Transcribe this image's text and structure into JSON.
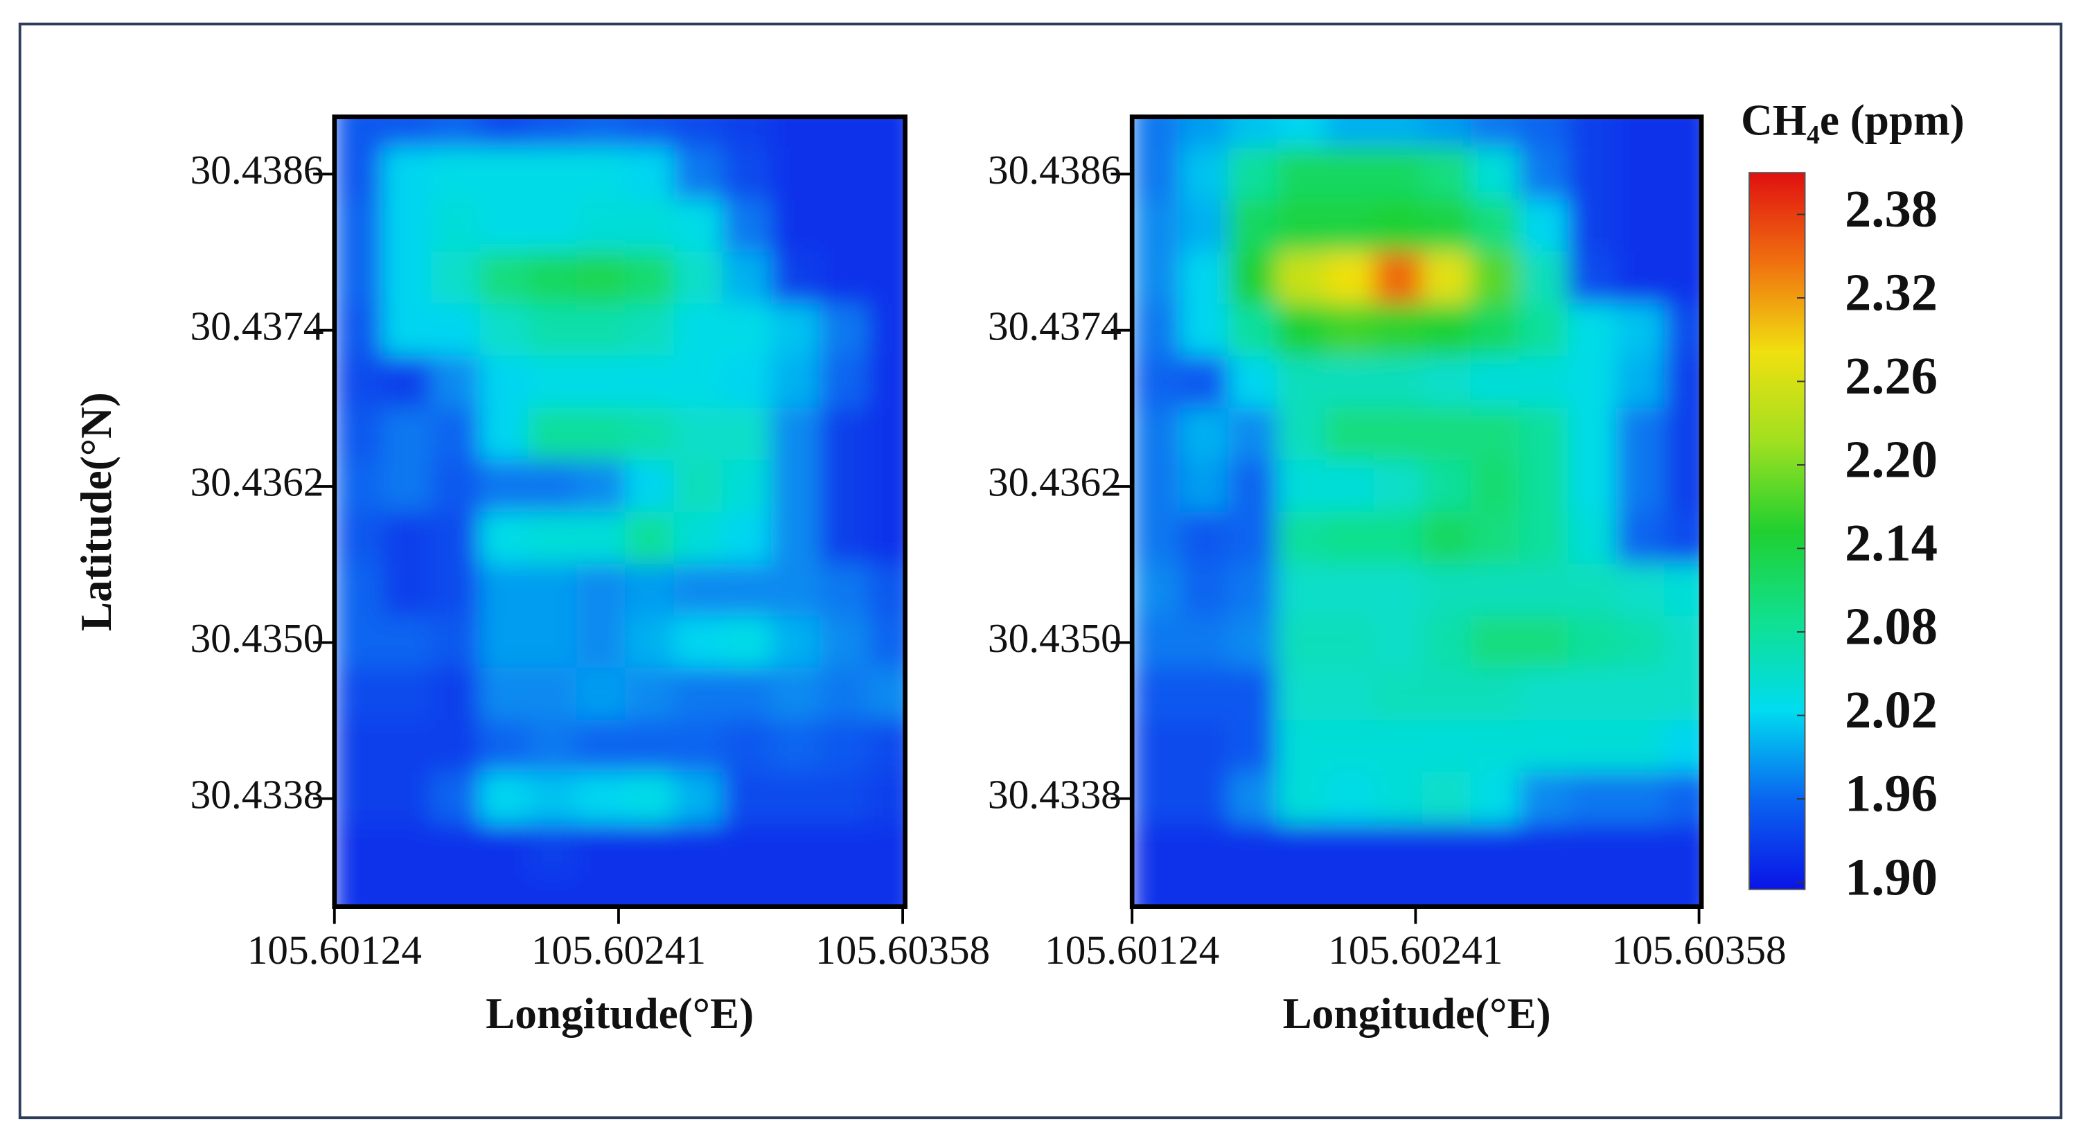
{
  "chart_data": [
    {
      "type": "heatmap",
      "x_label": "Longitude(°E)",
      "y_label": "Latitude(°N)",
      "xlim": [
        105.60124,
        105.60359
      ],
      "ylim": [
        30.43297,
        30.43904
      ],
      "xticks": [
        105.60124,
        105.60241,
        105.60358
      ],
      "yticks": [
        30.4386,
        30.4374,
        30.4362,
        {
          "value": 30.435,
          "label": "30.4350"
        },
        30.4338
      ],
      "clim": [
        1.895,
        2.41
      ],
      "colormap": [
        "#0a14e6",
        "#0a64f0",
        "#00dcf0",
        "#10e090",
        "#20d030",
        "#a0e020",
        "#f0e010",
        "#f07010",
        "#e01010"
      ],
      "x": [
        105.60134,
        105.60154,
        105.60174,
        105.60194,
        105.60214,
        105.60234,
        105.60254,
        105.60274,
        105.60294,
        105.60314,
        105.60334,
        105.60354
      ],
      "y": [
        30.439,
        30.4386,
        30.4382,
        30.4378,
        30.4374,
        30.437,
        30.4366,
        30.4362,
        30.4358,
        30.4354,
        30.435,
        30.4346,
        30.4342,
        30.4338,
        30.4334,
        30.433
      ],
      "z": [
        [
          1.95,
          1.95,
          1.96,
          1.94,
          1.95,
          1.96,
          1.95,
          1.94,
          1.93,
          1.92,
          1.92,
          1.92
        ],
        [
          1.95,
          2.02,
          2.03,
          2.03,
          2.03,
          2.03,
          2.02,
          1.97,
          1.94,
          1.92,
          1.92,
          1.92
        ],
        [
          1.96,
          2.02,
          2.04,
          2.03,
          2.03,
          2.04,
          2.04,
          2.03,
          1.97,
          1.92,
          1.92,
          1.92
        ],
        [
          1.96,
          2.02,
          2.05,
          2.1,
          2.12,
          2.13,
          2.11,
          2.05,
          2.0,
          1.93,
          1.92,
          1.92
        ],
        [
          1.95,
          2.02,
          2.02,
          2.05,
          2.07,
          2.07,
          2.06,
          2.03,
          2.03,
          2.01,
          1.97,
          1.92
        ],
        [
          1.94,
          1.93,
          1.98,
          2.02,
          2.03,
          2.03,
          2.03,
          2.03,
          2.02,
          2.0,
          1.96,
          1.92
        ],
        [
          1.95,
          1.97,
          1.96,
          2.02,
          2.08,
          2.08,
          2.07,
          2.05,
          2.05,
          1.98,
          1.93,
          1.92
        ],
        [
          1.96,
          1.97,
          1.95,
          1.97,
          1.97,
          1.98,
          2.02,
          2.06,
          2.04,
          1.98,
          1.93,
          1.92
        ],
        [
          1.95,
          1.93,
          1.94,
          2.03,
          2.04,
          2.04,
          2.08,
          2.04,
          2.02,
          1.98,
          1.93,
          1.92
        ],
        [
          1.96,
          1.93,
          1.94,
          1.99,
          1.99,
          1.98,
          1.99,
          1.98,
          1.98,
          1.98,
          1.97,
          1.95
        ],
        [
          1.96,
          1.96,
          1.95,
          1.99,
          1.99,
          1.98,
          2.0,
          2.02,
          2.03,
          2.0,
          1.98,
          1.96
        ],
        [
          1.94,
          1.94,
          1.93,
          1.98,
          1.98,
          1.99,
          1.98,
          1.97,
          1.97,
          1.98,
          1.97,
          1.98
        ],
        [
          1.93,
          1.93,
          1.93,
          1.96,
          1.97,
          1.96,
          1.96,
          1.96,
          1.95,
          1.96,
          1.95,
          1.94
        ],
        [
          1.93,
          1.93,
          1.96,
          2.02,
          2.01,
          2.02,
          2.03,
          2.0,
          1.94,
          1.94,
          1.94,
          1.93
        ],
        [
          1.92,
          1.92,
          1.92,
          1.92,
          1.93,
          1.92,
          1.92,
          1.92,
          1.92,
          1.92,
          1.92,
          1.92
        ],
        [
          1.92,
          1.92,
          1.92,
          1.92,
          1.92,
          1.92,
          1.92,
          1.92,
          1.92,
          1.92,
          1.92,
          1.92
        ]
      ]
    },
    {
      "type": "heatmap",
      "x_label": "Longitude(°E)",
      "xlim": [
        105.60124,
        105.60359
      ],
      "ylim": [
        30.43297,
        30.43904
      ],
      "xticks": [
        105.60124,
        105.60241,
        105.60358
      ],
      "yticks": [
        30.4386,
        30.4374,
        30.4362,
        {
          "value": 30.435,
          "label": "30.4350"
        },
        30.4338
      ],
      "clim": [
        1.895,
        2.41
      ],
      "colormap": [
        "#0a14e6",
        "#0a64f0",
        "#00dcf0",
        "#10e090",
        "#20d030",
        "#a0e020",
        "#f0e010",
        "#f07010",
        "#e01010"
      ],
      "colorbar": {
        "label": "CH₄e (ppm)",
        "ticks": [
          2.38,
          2.32,
          2.26,
          {
            "value": 2.2,
            "label": "2.20"
          },
          2.14,
          2.08,
          2.02,
          1.96,
          {
            "value": 1.9,
            "label": "1.90"
          }
        ]
      },
      "x": [
        105.60134,
        105.60154,
        105.60174,
        105.60194,
        105.60214,
        105.60234,
        105.60254,
        105.60274,
        105.60294,
        105.60314,
        105.60334,
        105.60354
      ],
      "y": [
        30.439,
        30.4386,
        30.4382,
        30.4378,
        30.4374,
        30.437,
        30.4366,
        30.4362,
        30.4358,
        30.4354,
        30.435,
        30.4346,
        30.4342,
        30.4338,
        30.4334,
        30.433
      ],
      "z": [
        [
          1.97,
          1.99,
          2.01,
          2.02,
          2.0,
          2.0,
          1.99,
          1.97,
          1.96,
          1.93,
          1.92,
          1.92
        ],
        [
          1.97,
          2.01,
          2.08,
          2.12,
          2.12,
          2.12,
          2.1,
          2.04,
          1.97,
          1.93,
          1.92,
          1.92
        ],
        [
          1.98,
          2.0,
          2.12,
          2.14,
          2.14,
          2.15,
          2.14,
          2.1,
          2.02,
          1.93,
          1.92,
          1.92
        ],
        [
          1.98,
          2.02,
          2.15,
          2.25,
          2.28,
          2.35,
          2.27,
          2.18,
          2.06,
          1.94,
          1.92,
          1.92
        ],
        [
          1.97,
          2.02,
          2.08,
          2.15,
          2.17,
          2.16,
          2.15,
          2.12,
          2.08,
          2.03,
          2.01,
          1.94
        ],
        [
          1.96,
          1.95,
          2.02,
          2.06,
          2.06,
          2.06,
          2.05,
          2.04,
          2.04,
          2.03,
          2.0,
          1.93
        ],
        [
          1.97,
          2.0,
          1.98,
          2.06,
          2.1,
          2.1,
          2.1,
          2.1,
          2.08,
          2.03,
          1.97,
          1.93
        ],
        [
          1.97,
          1.99,
          1.96,
          2.04,
          2.04,
          2.05,
          2.08,
          2.11,
          2.08,
          2.03,
          1.97,
          1.93
        ],
        [
          1.97,
          1.95,
          1.96,
          2.08,
          2.09,
          2.09,
          2.12,
          2.1,
          2.08,
          2.04,
          1.96,
          1.94
        ],
        [
          1.98,
          1.96,
          1.97,
          2.05,
          2.05,
          2.05,
          2.06,
          2.06,
          2.06,
          2.06,
          2.05,
          2.04
        ],
        [
          1.97,
          1.97,
          1.98,
          2.06,
          2.06,
          2.05,
          2.07,
          2.1,
          2.1,
          2.08,
          2.07,
          2.05
        ],
        [
          1.95,
          1.95,
          1.95,
          2.05,
          2.05,
          2.06,
          2.06,
          2.06,
          2.05,
          2.05,
          2.05,
          2.05
        ],
        [
          1.94,
          1.94,
          1.95,
          2.04,
          2.04,
          2.04,
          2.04,
          2.04,
          2.04,
          2.04,
          2.04,
          2.02
        ],
        [
          1.94,
          1.94,
          1.98,
          2.04,
          2.03,
          2.04,
          2.05,
          2.03,
          1.98,
          1.97,
          1.97,
          1.96
        ],
        [
          1.92,
          1.92,
          1.92,
          1.92,
          1.92,
          1.92,
          1.92,
          1.92,
          1.92,
          1.92,
          1.92,
          1.92
        ],
        [
          1.92,
          1.92,
          1.92,
          1.92,
          1.92,
          1.92,
          1.92,
          1.92,
          1.92,
          1.92,
          1.92,
          1.92
        ]
      ]
    }
  ]
}
